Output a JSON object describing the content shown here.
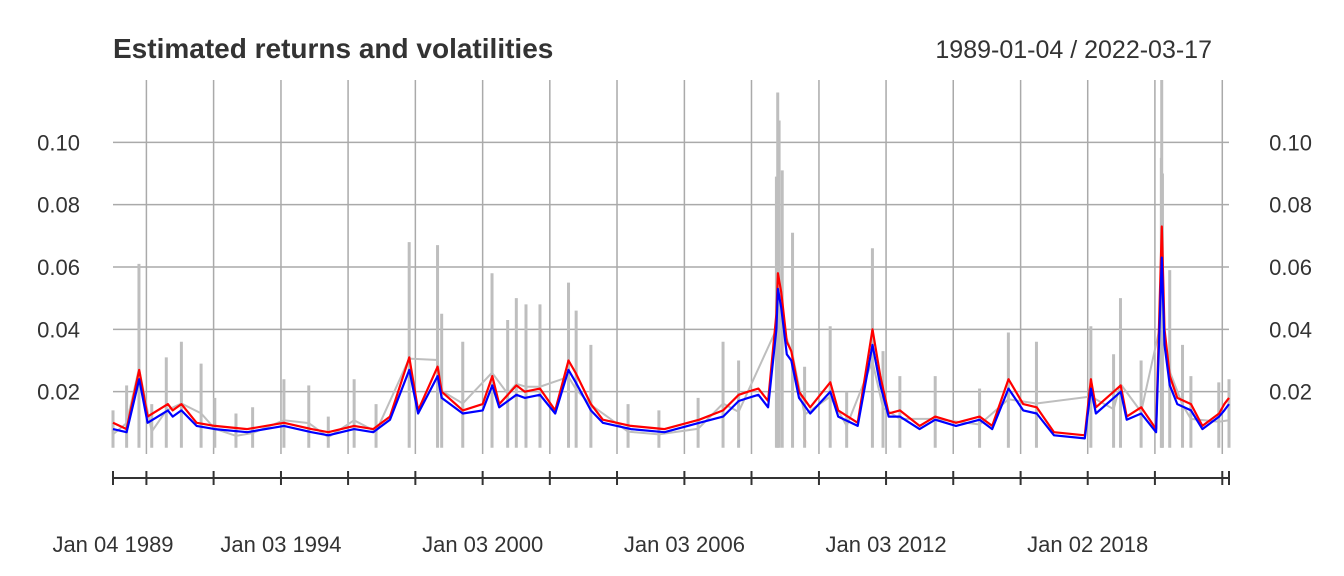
{
  "chart_data": {
    "type": "line",
    "title": "Estimated returns and volatilities",
    "date_range_label": "1989-01-04 / 2022-03-17",
    "x_range": [
      "1989-01-04",
      "2022-03-17"
    ],
    "ylim": [
      0.0,
      0.12
    ],
    "y_ticks": [
      {
        "value": 0.02,
        "label": "0.02"
      },
      {
        "value": 0.04,
        "label": "0.04"
      },
      {
        "value": 0.06,
        "label": "0.06"
      },
      {
        "value": 0.08,
        "label": "0.08"
      },
      {
        "value": 0.1,
        "label": "0.10"
      }
    ],
    "x_tick_labels": [
      {
        "date": "1989-01-04",
        "label": "Jan 04 1989"
      },
      {
        "date": "1994-01-03",
        "label": "Jan 03 1994"
      },
      {
        "date": "2000-01-03",
        "label": "Jan 03 2000"
      },
      {
        "date": "2006-01-03",
        "label": "Jan 03 2006"
      },
      {
        "date": "2012-01-03",
        "label": "Jan 03 2012"
      },
      {
        "date": "2018-01-02",
        "label": "Jan 02 2018"
      }
    ],
    "x_gridlines": [
      "1990-01-02",
      "1992-01-02",
      "1994-01-03",
      "1996-01-02",
      "1998-01-02",
      "2000-01-03",
      "2002-01-02",
      "2004-01-02",
      "2006-01-03",
      "2008-01-02",
      "2010-01-04",
      "2012-01-03",
      "2014-01-02",
      "2016-01-04",
      "2018-01-02",
      "2020-01-02",
      "2022-01-03"
    ],
    "grid": true,
    "series": [
      {
        "key": "abs_returns",
        "color": "#bebebe",
        "style": "spikes",
        "points": [
          [
            "1989-01-04",
            0.014
          ],
          [
            "1989-06-01",
            0.022
          ],
          [
            "1989-10-13",
            0.061
          ],
          [
            "1990-03-01",
            0.016
          ],
          [
            "1990-08-06",
            0.031
          ],
          [
            "1991-01-17",
            0.036
          ],
          [
            "1991-08-19",
            0.029
          ],
          [
            "1992-01-15",
            0.018
          ],
          [
            "1992-09-01",
            0.013
          ],
          [
            "1993-03-01",
            0.015
          ],
          [
            "1994-02-04",
            0.024
          ],
          [
            "1994-11-01",
            0.022
          ],
          [
            "1995-06-01",
            0.012
          ],
          [
            "1996-03-08",
            0.024
          ],
          [
            "1996-11-01",
            0.016
          ],
          [
            "1997-10-27",
            0.068
          ],
          [
            "1998-08-31",
            0.067
          ],
          [
            "1998-10-15",
            0.045
          ],
          [
            "1999-06-01",
            0.036
          ],
          [
            "2000-04-14",
            0.058
          ],
          [
            "2000-10-01",
            0.043
          ],
          [
            "2001-01-03",
            0.05
          ],
          [
            "2001-04-18",
            0.048
          ],
          [
            "2001-09-17",
            0.048
          ],
          [
            "2002-07-24",
            0.055
          ],
          [
            "2002-10-15",
            0.046
          ],
          [
            "2003-03-24",
            0.035
          ],
          [
            "2004-05-01",
            0.016
          ],
          [
            "2005-04-01",
            0.014
          ],
          [
            "2006-06-01",
            0.018
          ],
          [
            "2007-02-27",
            0.036
          ],
          [
            "2007-08-15",
            0.03
          ],
          [
            "2008-09-29",
            0.089
          ],
          [
            "2008-10-13",
            0.116
          ],
          [
            "2008-10-28",
            0.107
          ],
          [
            "2008-12-01",
            0.091
          ],
          [
            "2009-03-23",
            0.071
          ],
          [
            "2009-08-01",
            0.028
          ],
          [
            "2010-05-06",
            0.041
          ],
          [
            "2010-11-01",
            0.02
          ],
          [
            "2011-08-08",
            0.066
          ],
          [
            "2011-12-01",
            0.033
          ],
          [
            "2012-06-01",
            0.025
          ],
          [
            "2013-06-20",
            0.025
          ],
          [
            "2014-10-15",
            0.021
          ],
          [
            "2015-08-24",
            0.039
          ],
          [
            "2016-06-24",
            0.036
          ],
          [
            "2018-02-05",
            0.041
          ],
          [
            "2018-10-10",
            0.032
          ],
          [
            "2018-12-24",
            0.05
          ],
          [
            "2019-08-05",
            0.03
          ],
          [
            "2020-03-12",
            0.095
          ],
          [
            "2020-03-16",
            0.12
          ],
          [
            "2020-03-24",
            0.09
          ],
          [
            "2020-06-11",
            0.059
          ],
          [
            "2020-10-28",
            0.035
          ],
          [
            "2021-01-27",
            0.025
          ],
          [
            "2021-11-26",
            0.023
          ],
          [
            "2022-03-17",
            0.024
          ]
        ]
      },
      {
        "key": "vol_model_red",
        "color": "#ff0000",
        "style": "line",
        "points": [
          [
            "1989-01-04",
            0.01
          ],
          [
            "1989-06-01",
            0.008
          ],
          [
            "1989-10-16",
            0.027
          ],
          [
            "1990-01-15",
            0.012
          ],
          [
            "1990-08-23",
            0.016
          ],
          [
            "1990-10-15",
            0.014
          ],
          [
            "1991-01-17",
            0.016
          ],
          [
            "1991-07-01",
            0.01
          ],
          [
            "1992-01-15",
            0.009
          ],
          [
            "1993-01-01",
            0.008
          ],
          [
            "1994-02-04",
            0.01
          ],
          [
            "1994-12-01",
            0.008
          ],
          [
            "1995-06-01",
            0.007
          ],
          [
            "1996-03-08",
            0.009
          ],
          [
            "1996-10-01",
            0.008
          ],
          [
            "1997-04-01",
            0.012
          ],
          [
            "1997-10-28",
            0.031
          ],
          [
            "1998-02-01",
            0.014
          ],
          [
            "1998-09-01",
            0.028
          ],
          [
            "1998-10-15",
            0.02
          ],
          [
            "1999-06-01",
            0.014
          ],
          [
            "2000-01-04",
            0.016
          ],
          [
            "2000-04-17",
            0.025
          ],
          [
            "2000-07-01",
            0.016
          ],
          [
            "2001-01-04",
            0.022
          ],
          [
            "2001-04-05",
            0.02
          ],
          [
            "2001-09-17",
            0.021
          ],
          [
            "2002-03-01",
            0.014
          ],
          [
            "2002-07-24",
            0.03
          ],
          [
            "2002-10-10",
            0.026
          ],
          [
            "2003-03-24",
            0.016
          ],
          [
            "2003-08-01",
            0.011
          ],
          [
            "2004-06-01",
            0.009
          ],
          [
            "2005-06-01",
            0.008
          ],
          [
            "2006-06-14",
            0.011
          ],
          [
            "2007-02-28",
            0.014
          ],
          [
            "2007-08-16",
            0.019
          ],
          [
            "2007-11-26",
            0.02
          ],
          [
            "2008-03-17",
            0.021
          ],
          [
            "2008-07-01",
            0.017
          ],
          [
            "2008-09-29",
            0.045
          ],
          [
            "2008-10-15",
            0.058
          ],
          [
            "2008-11-20",
            0.052
          ],
          [
            "2009-01-20",
            0.036
          ],
          [
            "2009-03-10",
            0.033
          ],
          [
            "2009-06-01",
            0.02
          ],
          [
            "2009-10-01",
            0.015
          ],
          [
            "2010-05-07",
            0.023
          ],
          [
            "2010-08-01",
            0.014
          ],
          [
            "2011-03-01",
            0.01
          ],
          [
            "2011-08-09",
            0.04
          ],
          [
            "2011-11-01",
            0.025
          ],
          [
            "2012-02-01",
            0.013
          ],
          [
            "2012-06-01",
            0.014
          ],
          [
            "2013-01-01",
            0.009
          ],
          [
            "2013-06-20",
            0.012
          ],
          [
            "2014-02-01",
            0.01
          ],
          [
            "2014-10-16",
            0.012
          ],
          [
            "2015-03-01",
            0.009
          ],
          [
            "2015-08-25",
            0.024
          ],
          [
            "2016-02-01",
            0.016
          ],
          [
            "2016-06-27",
            0.015
          ],
          [
            "2017-01-01",
            0.007
          ],
          [
            "2017-12-01",
            0.006
          ],
          [
            "2018-02-06",
            0.024
          ],
          [
            "2018-04-01",
            0.015
          ],
          [
            "2018-10-11",
            0.02
          ],
          [
            "2018-12-26",
            0.022
          ],
          [
            "2019-03-01",
            0.012
          ],
          [
            "2019-08-06",
            0.015
          ],
          [
            "2020-01-15",
            0.008
          ],
          [
            "2020-03-17",
            0.073
          ],
          [
            "2020-04-15",
            0.04
          ],
          [
            "2020-06-12",
            0.025
          ],
          [
            "2020-09-01",
            0.018
          ],
          [
            "2021-01-28",
            0.016
          ],
          [
            "2021-06-01",
            0.009
          ],
          [
            "2021-11-29",
            0.013
          ],
          [
            "2022-01-25",
            0.016
          ],
          [
            "2022-03-17",
            0.018
          ]
        ]
      },
      {
        "key": "vol_model_blue",
        "color": "#0000ff",
        "style": "line",
        "points": [
          [
            "1989-01-04",
            0.008
          ],
          [
            "1989-06-01",
            0.007
          ],
          [
            "1989-10-16",
            0.024
          ],
          [
            "1990-01-15",
            0.01
          ],
          [
            "1990-08-23",
            0.014
          ],
          [
            "1990-10-15",
            0.012
          ],
          [
            "1991-01-17",
            0.014
          ],
          [
            "1991-07-01",
            0.009
          ],
          [
            "1992-01-15",
            0.008
          ],
          [
            "1993-01-01",
            0.007
          ],
          [
            "1994-02-04",
            0.009
          ],
          [
            "1994-12-01",
            0.007
          ],
          [
            "1995-06-01",
            0.006
          ],
          [
            "1996-03-08",
            0.008
          ],
          [
            "1996-10-01",
            0.007
          ],
          [
            "1997-04-01",
            0.011
          ],
          [
            "1997-10-28",
            0.027
          ],
          [
            "1998-02-01",
            0.013
          ],
          [
            "1998-09-01",
            0.025
          ],
          [
            "1998-10-15",
            0.018
          ],
          [
            "1999-06-01",
            0.013
          ],
          [
            "2000-01-04",
            0.014
          ],
          [
            "2000-04-17",
            0.022
          ],
          [
            "2000-07-01",
            0.015
          ],
          [
            "2001-01-04",
            0.019
          ],
          [
            "2001-04-05",
            0.018
          ],
          [
            "2001-09-17",
            0.019
          ],
          [
            "2002-03-01",
            0.013
          ],
          [
            "2002-07-24",
            0.027
          ],
          [
            "2002-10-10",
            0.023
          ],
          [
            "2003-03-24",
            0.014
          ],
          [
            "2003-08-01",
            0.01
          ],
          [
            "2004-06-01",
            0.008
          ],
          [
            "2005-06-01",
            0.007
          ],
          [
            "2006-06-14",
            0.01
          ],
          [
            "2007-02-28",
            0.012
          ],
          [
            "2007-08-16",
            0.017
          ],
          [
            "2007-11-26",
            0.018
          ],
          [
            "2008-03-17",
            0.019
          ],
          [
            "2008-07-01",
            0.015
          ],
          [
            "2008-09-29",
            0.04
          ],
          [
            "2008-10-15",
            0.053
          ],
          [
            "2008-11-20",
            0.047
          ],
          [
            "2009-01-20",
            0.032
          ],
          [
            "2009-03-10",
            0.03
          ],
          [
            "2009-06-01",
            0.018
          ],
          [
            "2009-10-01",
            0.013
          ],
          [
            "2010-05-07",
            0.02
          ],
          [
            "2010-08-01",
            0.012
          ],
          [
            "2011-03-01",
            0.009
          ],
          [
            "2011-08-09",
            0.035
          ],
          [
            "2011-11-01",
            0.022
          ],
          [
            "2012-02-01",
            0.012
          ],
          [
            "2012-06-01",
            0.012
          ],
          [
            "2013-01-01",
            0.008
          ],
          [
            "2013-06-20",
            0.011
          ],
          [
            "2014-02-01",
            0.009
          ],
          [
            "2014-10-16",
            0.011
          ],
          [
            "2015-03-01",
            0.008
          ],
          [
            "2015-08-25",
            0.021
          ],
          [
            "2016-02-01",
            0.014
          ],
          [
            "2016-06-27",
            0.013
          ],
          [
            "2017-01-01",
            0.006
          ],
          [
            "2017-12-01",
            0.005
          ],
          [
            "2018-02-06",
            0.021
          ],
          [
            "2018-04-01",
            0.013
          ],
          [
            "2018-10-11",
            0.018
          ],
          [
            "2018-12-26",
            0.02
          ],
          [
            "2019-03-01",
            0.011
          ],
          [
            "2019-08-06",
            0.013
          ],
          [
            "2020-01-15",
            0.007
          ],
          [
            "2020-03-17",
            0.063
          ],
          [
            "2020-04-15",
            0.035
          ],
          [
            "2020-06-12",
            0.022
          ],
          [
            "2020-09-01",
            0.016
          ],
          [
            "2021-01-28",
            0.014
          ],
          [
            "2021-06-01",
            0.008
          ],
          [
            "2021-11-29",
            0.012
          ],
          [
            "2022-01-25",
            0.014
          ],
          [
            "2022-03-17",
            0.016
          ]
        ]
      }
    ]
  }
}
